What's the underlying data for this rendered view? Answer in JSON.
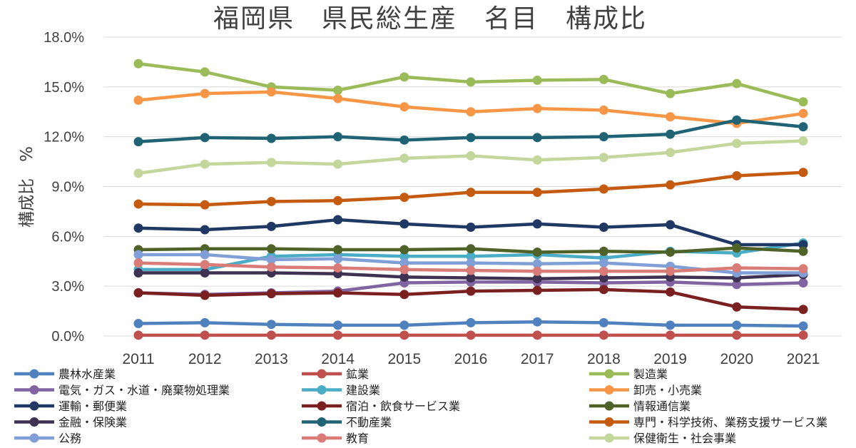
{
  "chart_data": {
    "type": "line",
    "title": "福岡県　県民総生産　名目　構成比",
    "xlabel": "",
    "ylabel": "構成比　%",
    "ylim": [
      0,
      18
    ],
    "yticks": [
      "0.0%",
      "3.0%",
      "6.0%",
      "9.0%",
      "12.0%",
      "15.0%",
      "18.0%"
    ],
    "ytick_values": [
      0,
      3,
      6,
      9,
      12,
      15,
      18
    ],
    "x": [
      "2011",
      "2012",
      "2013",
      "2014",
      "2015",
      "2016",
      "2017",
      "2018",
      "2019",
      "2020",
      "2021"
    ],
    "grid": true,
    "legend_position": "bottom",
    "series": [
      {
        "name": "農林水産業",
        "color": "#4e81bd",
        "values": [
          0.75,
          0.8,
          0.7,
          0.65,
          0.65,
          0.8,
          0.85,
          0.8,
          0.65,
          0.65,
          0.6
        ]
      },
      {
        "name": "鉱業",
        "color": "#c0504d",
        "values": [
          0.05,
          0.05,
          0.05,
          0.05,
          0.05,
          0.05,
          0.05,
          0.05,
          0.05,
          0.05,
          0.05
        ]
      },
      {
        "name": "製造業",
        "color": "#9bbb59",
        "values": [
          16.4,
          15.9,
          15.0,
          14.8,
          15.6,
          15.3,
          15.4,
          15.45,
          14.6,
          15.2,
          14.1
        ]
      },
      {
        "name": "電気・ガス・水道・廃棄物処理業",
        "color": "#8064a2",
        "values": [
          2.6,
          2.5,
          2.6,
          2.7,
          3.2,
          3.25,
          3.25,
          3.2,
          3.25,
          3.1,
          3.2
        ]
      },
      {
        "name": "建設業",
        "color": "#4bacc6",
        "values": [
          4.0,
          4.0,
          4.8,
          4.9,
          4.8,
          4.8,
          4.9,
          4.7,
          5.1,
          5.0,
          5.6
        ]
      },
      {
        "name": "卸売・小売業",
        "color": "#f79646",
        "values": [
          14.2,
          14.6,
          14.7,
          14.3,
          13.8,
          13.5,
          13.7,
          13.6,
          13.2,
          12.8,
          13.4
        ]
      },
      {
        "name": "運輸・郵便業",
        "color": "#1f3864",
        "values": [
          6.5,
          6.4,
          6.6,
          7.0,
          6.75,
          6.55,
          6.75,
          6.55,
          6.7,
          5.5,
          5.5
        ]
      },
      {
        "name": "宿泊・飲食サービス業",
        "color": "#7b2020",
        "values": [
          2.6,
          2.45,
          2.55,
          2.6,
          2.5,
          2.7,
          2.75,
          2.8,
          2.65,
          1.75,
          1.6
        ]
      },
      {
        "name": "情報通信業",
        "color": "#4f6228",
        "values": [
          5.2,
          5.25,
          5.25,
          5.2,
          5.2,
          5.25,
          5.05,
          5.1,
          5.05,
          5.3,
          5.1
        ]
      },
      {
        "name": "金融・保険業",
        "color": "#3f3151",
        "values": [
          3.8,
          3.8,
          3.8,
          3.75,
          3.55,
          3.5,
          3.45,
          3.5,
          3.55,
          3.5,
          3.7
        ]
      },
      {
        "name": "不動産業",
        "color": "#1f6374",
        "values": [
          11.7,
          11.95,
          11.9,
          12.0,
          11.8,
          11.95,
          11.95,
          12.0,
          12.15,
          13.0,
          12.6
        ]
      },
      {
        "name": "専門・科学技術、業務支援サービス業",
        "color": "#c55a11",
        "values": [
          7.95,
          7.9,
          8.1,
          8.15,
          8.35,
          8.65,
          8.65,
          8.85,
          9.1,
          9.65,
          9.85
        ]
      },
      {
        "name": "公務",
        "color": "#7f9fd6",
        "values": [
          4.9,
          4.9,
          4.6,
          4.65,
          4.4,
          4.4,
          4.35,
          4.4,
          4.2,
          3.8,
          3.8
        ]
      },
      {
        "name": "教育",
        "color": "#d97b77",
        "values": [
          4.4,
          4.3,
          4.15,
          4.1,
          4.0,
          3.95,
          3.9,
          3.9,
          3.9,
          4.1,
          4.05
        ]
      },
      {
        "name": "保健衛生・社会事業",
        "color": "#c3d69b",
        "values": [
          9.8,
          10.35,
          10.45,
          10.35,
          10.7,
          10.85,
          10.6,
          10.75,
          11.05,
          11.6,
          11.75
        ]
      }
    ]
  }
}
